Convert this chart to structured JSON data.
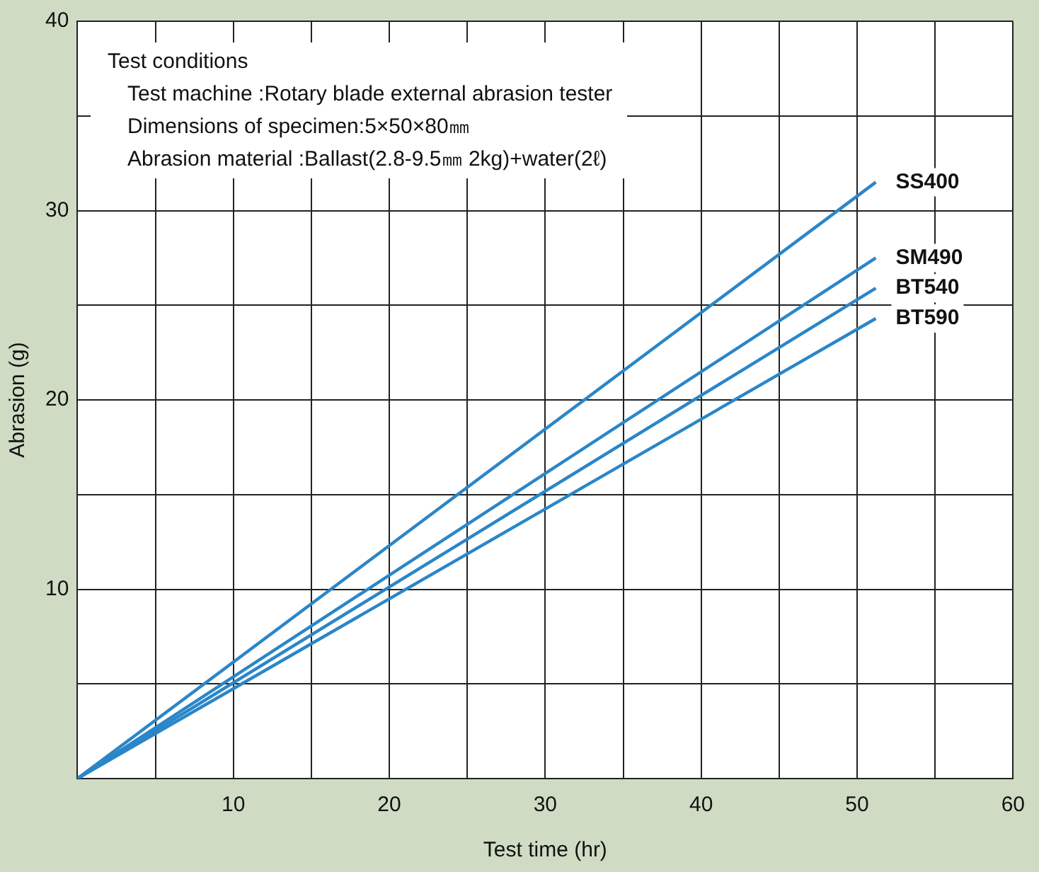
{
  "chart_data": {
    "type": "line",
    "xlabel": "Test time (hr)",
    "ylabel": "Abrasion (g)",
    "xlim": [
      0,
      60
    ],
    "ylim": [
      0,
      40
    ],
    "xticks": [
      {
        "value": 5,
        "label": null
      },
      10,
      {
        "value": 15,
        "label": null
      },
      20,
      {
        "value": 25,
        "label": null
      },
      30,
      {
        "value": 35,
        "label": null
      },
      40,
      {
        "value": 45,
        "label": null
      },
      50,
      {
        "value": 55,
        "label": null
      },
      60
    ],
    "yticks": [
      {
        "value": 5,
        "label": null
      },
      10,
      {
        "value": 15,
        "label": null
      },
      20,
      {
        "value": 25,
        "label": null
      },
      30,
      {
        "value": 35,
        "label": null
      },
      40
    ],
    "grid": true,
    "legend": false,
    "marker": "none",
    "line_style": "solid",
    "x": [
      0,
      51.2
    ],
    "series": [
      {
        "name": "SS400",
        "color": "#2a86c8",
        "values": [
          0,
          31.5
        ]
      },
      {
        "name": "SM490",
        "color": "#2a86c8",
        "values": [
          0,
          27.5
        ]
      },
      {
        "name": "BT540",
        "color": "#2a86c8",
        "values": [
          0,
          25.9
        ]
      },
      {
        "name": "BT590",
        "color": "#2a86c8",
        "values": [
          0,
          24.3
        ]
      }
    ],
    "annotations": [
      "Test conditions",
      "Test machine :Rotary blade external abrasion tester",
      "Dimensions of specimen:5×50×80㎜",
      "Abrasion material :Ballast(2.8-9.5㎜ 2kg)+water(2ℓ)"
    ]
  }
}
